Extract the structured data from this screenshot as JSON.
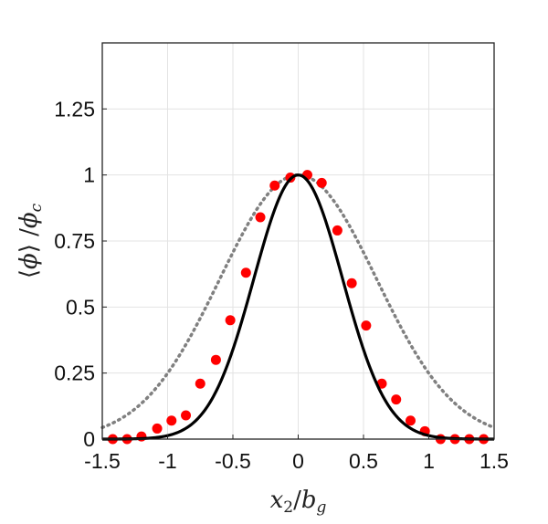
{
  "chart_data": {
    "type": "line",
    "title": "",
    "xlabel": "x₂/b_g",
    "ylabel": "⟨ϕ⟩/ϕ_c",
    "xlim": [
      -1.5,
      1.5
    ],
    "ylim": [
      0,
      1.5
    ],
    "grid": true,
    "legend": "none",
    "x_ticks": [
      "-1.5",
      "-1",
      "-0.5",
      "0",
      "0.5",
      "1",
      "1.5"
    ],
    "y_ticks": [
      "0",
      "0.25",
      "0.5",
      "0.75",
      "1",
      "1.25"
    ],
    "series": [
      {
        "style": "solid",
        "color": "#000000",
        "function": "gaussian",
        "sigma": 0.34,
        "x": [
          -1.5,
          -1.25,
          -1.0,
          -0.75,
          -0.5,
          -0.25,
          0.0,
          0.25,
          0.5,
          0.75,
          1.0,
          1.25,
          1.5
        ],
        "y": [
          0.0,
          0.005,
          0.013,
          0.143,
          0.339,
          0.763,
          1.0,
          0.763,
          0.339,
          0.143,
          0.013,
          0.005,
          0.0
        ]
      },
      {
        "style": "dotted",
        "color": "#808080",
        "function": "gaussian",
        "sigma": 0.6,
        "x": [
          -1.5,
          -1.25,
          -1.0,
          -0.75,
          -0.5,
          -0.25,
          0.0,
          0.25,
          0.5,
          0.75,
          1.0,
          1.25,
          1.5
        ],
        "y": [
          0.044,
          0.115,
          0.25,
          0.458,
          0.707,
          0.917,
          1.0,
          0.917,
          0.707,
          0.458,
          0.25,
          0.115,
          0.044
        ]
      },
      {
        "style": "markers",
        "color": "#ff0000",
        "x": [
          -1.42,
          -1.31,
          -1.2,
          -1.08,
          -0.97,
          -0.86,
          -0.75,
          -0.63,
          -0.52,
          -0.4,
          -0.29,
          -0.18,
          -0.06,
          0.07,
          0.18,
          0.3,
          0.41,
          0.52,
          0.64,
          0.75,
          0.86,
          0.97,
          1.09,
          1.2,
          1.31,
          1.42
        ],
        "y": [
          0.0,
          0.0,
          0.01,
          0.04,
          0.07,
          0.09,
          0.21,
          0.3,
          0.45,
          0.63,
          0.84,
          0.96,
          0.99,
          1.0,
          0.97,
          0.79,
          0.59,
          0.43,
          0.21,
          0.15,
          0.07,
          0.03,
          0.0,
          0.0,
          0.0,
          0.0
        ]
      }
    ]
  }
}
